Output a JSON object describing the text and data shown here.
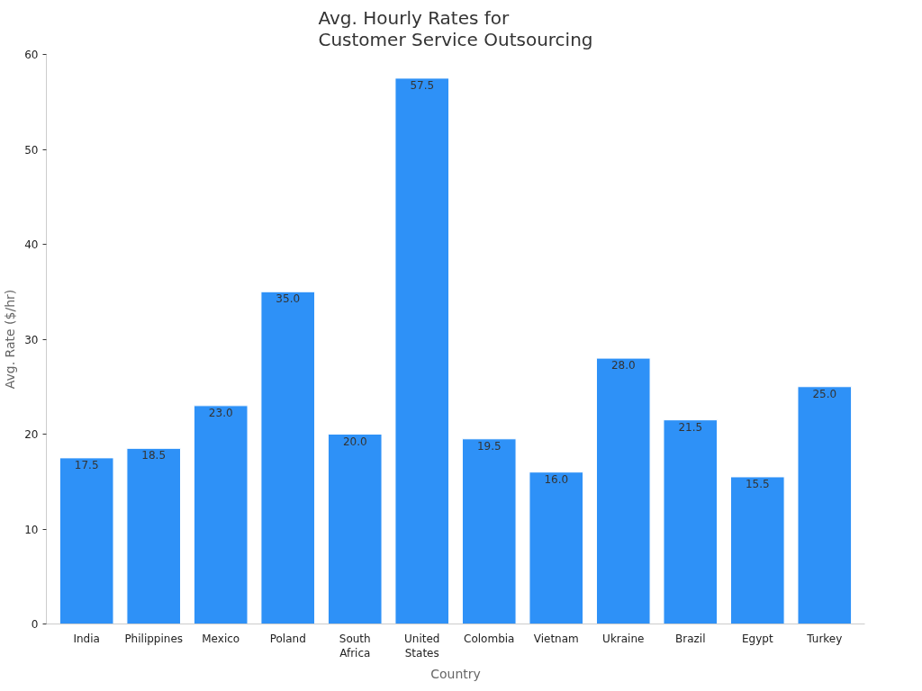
{
  "chart_data": {
    "type": "bar",
    "title": "Avg. Hourly Rates for\nCustomer Service Outsourcing",
    "xlabel": "Country",
    "ylabel": "Avg. Rate ($/hr)",
    "categories": [
      "India",
      "Philippines",
      "Mexico",
      "Poland",
      "South\nAfrica",
      "United\nStates",
      "Colombia",
      "Vietnam",
      "Ukraine",
      "Brazil",
      "Egypt",
      "Turkey"
    ],
    "values": [
      17.5,
      18.5,
      23.0,
      35.0,
      20.0,
      57.5,
      19.5,
      16.0,
      28.0,
      21.5,
      15.5,
      25.0
    ],
    "value_labels": [
      "17.5",
      "18.5",
      "23.0",
      "35.0",
      "20.0",
      "57.5",
      "19.5",
      "16.0",
      "28.0",
      "21.5",
      "15.5",
      "25.0"
    ],
    "color": "#2e91f7",
    "ylim": [
      0,
      60
    ],
    "yticks": [
      0,
      10,
      20,
      30,
      40,
      50,
      60
    ],
    "grid": false
  }
}
